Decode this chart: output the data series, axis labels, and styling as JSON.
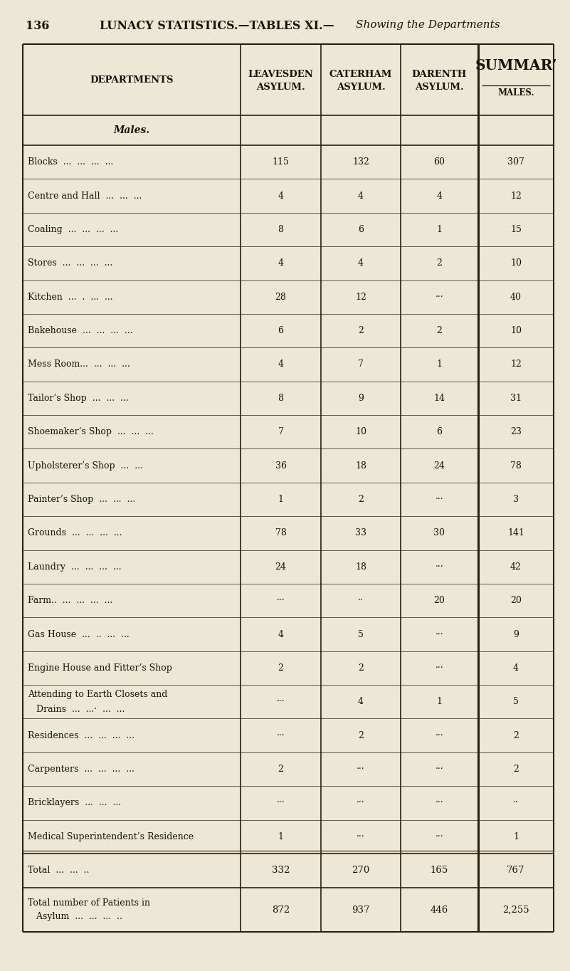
{
  "page_number": "136",
  "title_bold": "LUNACY STATISTICS.—TABLES XI.—",
  "title_italic": "Showing the Departments",
  "bg_color": "#ede8d5",
  "text_color": "#1a1008",
  "line_color": "#2a1f0a",
  "col_headers_line1": [
    "DEPARTMENTS",
    "LEAVESDEN",
    "CATERHAM",
    "DARENTH",
    "SUMMAR’"
  ],
  "col_headers_line2": [
    "",
    "ASYLUM.",
    "ASYLUM.",
    "ASYLUM.",
    ""
  ],
  "col_headers_line3": [
    "",
    "",
    "",
    "",
    "MALES."
  ],
  "subheader": "Males.",
  "rows": [
    [
      "Blocks  ...  ...  ...  ...",
      "115",
      "132",
      "60",
      "307"
    ],
    [
      "Centre and Hall  ...  ...  ...",
      "4",
      "4",
      "4",
      "12"
    ],
    [
      "Coaling  ...  ...  ...  ...",
      "8",
      "6",
      "1",
      "15"
    ],
    [
      "Stores  ...  ...  ...  ...",
      "4",
      "4",
      "2",
      "10"
    ],
    [
      "Kitchen  ...  .  ...  ...",
      "28",
      "12",
      "···",
      "40"
    ],
    [
      "Bakehouse  ...  ...  ...  ...",
      "6",
      "2",
      "2",
      "10"
    ],
    [
      "Mess Room...  ...  ...  ...",
      "4",
      "7",
      "1",
      "12"
    ],
    [
      "Tailor’s Shop  ...  ...  ...",
      "8",
      "9",
      "14",
      "31"
    ],
    [
      "Shoemaker’s Shop  ...  ...  ...",
      "7",
      "10",
      "6",
      "23"
    ],
    [
      "Upholsterer’s Shop  ...  ...",
      "36",
      "18",
      "24",
      "78"
    ],
    [
      "Painter’s Shop  ...  ...  ...",
      "1",
      "2",
      "···",
      "3"
    ],
    [
      "Grounds  ...  ...  ...  ...",
      "78",
      "33",
      "30",
      "141"
    ],
    [
      "Laundry  ...  ...  ...  ...",
      "24",
      "18",
      "···",
      "42"
    ],
    [
      "Farm..  ...  ...  ...  ...",
      "···",
      "··",
      "20",
      "20"
    ],
    [
      "Gas House  ...  ..  ...  ...",
      "4",
      "5",
      "···",
      "9"
    ],
    [
      "Engine House and Fitter’s Shop",
      "2",
      "2",
      "···",
      "4"
    ],
    [
      "Attending to Earth Closets and\n   Drains  ...  ...·  ...  ...",
      "···",
      "4",
      "1",
      "5"
    ],
    [
      "Residences  ...  ...  ...  ...",
      "···",
      "2",
      "···",
      "2"
    ],
    [
      "Carpenters  ...  ...  ...  ...",
      "2",
      "···",
      "···",
      "2"
    ],
    [
      "Bricklayers  ...  ...  ...",
      "···",
      "···",
      "···",
      "··"
    ],
    [
      "Medical Superintendent’s Residence",
      "1",
      "···",
      "···",
      "1"
    ]
  ],
  "total_row": [
    "Total  ...  ...  ..  ",
    "332",
    "270",
    "165",
    "767"
  ],
  "patients_row": [
    "Total number of Patients in\n   Asylum  ...  ...  ...  ..",
    "872",
    "937",
    "446",
    "2,255"
  ],
  "font_size_body": 9,
  "font_size_header": 9.5,
  "font_size_title": 11.5
}
